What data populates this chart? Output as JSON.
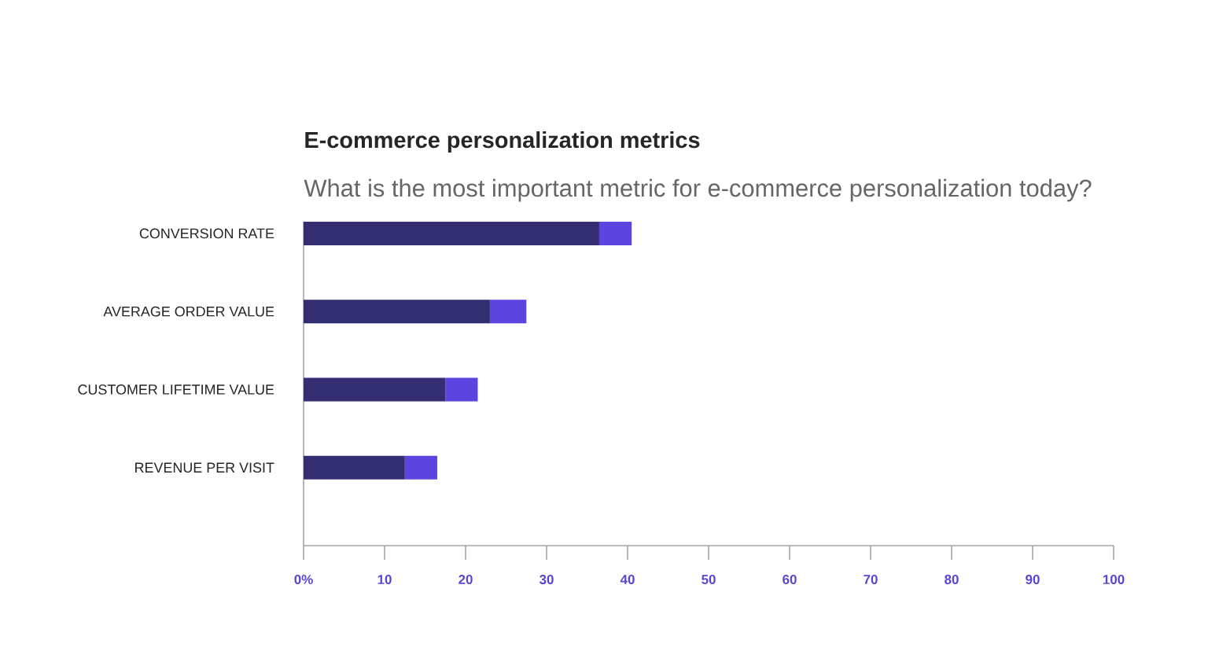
{
  "chart_data": {
    "type": "bar",
    "orientation": "horizontal",
    "stacked": true,
    "title": "E-commerce personalization metrics",
    "subtitle": "What is the most important metric for e-commerce personalization today?",
    "categories": [
      "CONVERSION RATE",
      "AVERAGE ORDER VALUE",
      "CUSTOMER LIFETIME VALUE",
      "REVENUE PER VISIT"
    ],
    "series": [
      {
        "color": "#332e72",
        "values": [
          36.5,
          23,
          17.5,
          12.5
        ]
      },
      {
        "color": "#5b45e0",
        "values": [
          4,
          4.5,
          4,
          4
        ]
      }
    ],
    "xlim": [
      0,
      100
    ],
    "xticks": [
      {
        "value": 0,
        "label": "0%"
      },
      10,
      20,
      30,
      40,
      50,
      60,
      70,
      80,
      90,
      100
    ],
    "grid": false
  }
}
